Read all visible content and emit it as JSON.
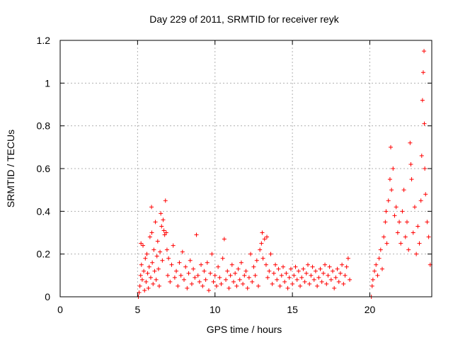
{
  "chart_data": {
    "type": "scatter",
    "title": "Day 229 of 2011, SRMTID for receiver reyk",
    "xlabel": "GPS time / hours",
    "ylabel": "SRMTID / TECUs",
    "xlim": [
      0,
      24
    ],
    "ylim": [
      0,
      1.2
    ],
    "xticks": [
      {
        "value": 0,
        "label": "0"
      },
      {
        "value": 5,
        "label": "5"
      },
      {
        "value": 10,
        "label": "10"
      },
      {
        "value": 15,
        "label": "15"
      },
      {
        "value": 20,
        "label": "20"
      }
    ],
    "yticks": [
      {
        "value": 0,
        "label": "0"
      },
      {
        "value": 0.2,
        "label": "0.2"
      },
      {
        "value": 0.4,
        "label": "0.4"
      },
      {
        "value": 0.6,
        "label": "0.6"
      },
      {
        "value": 0.8,
        "label": "0.8"
      },
      {
        "value": 1.0,
        "label": "1"
      },
      {
        "value": 1.2,
        "label": "1.2"
      }
    ],
    "grid": true,
    "marker": "plus",
    "color": "#ff0000",
    "series": [
      {
        "points": [
          [
            5.05,
            0.0
          ],
          [
            5.1,
            0.02
          ],
          [
            5.15,
            0.05
          ],
          [
            5.2,
            0.1
          ],
          [
            5.22,
            0.25
          ],
          [
            5.25,
            0.15
          ],
          [
            5.3,
            0.08
          ],
          [
            5.35,
            0.24
          ],
          [
            5.4,
            0.12
          ],
          [
            5.45,
            0.03
          ],
          [
            5.5,
            0.18
          ],
          [
            5.55,
            0.07
          ],
          [
            5.6,
            0.2
          ],
          [
            5.65,
            0.11
          ],
          [
            5.7,
            0.04
          ],
          [
            5.75,
            0.14
          ],
          [
            5.8,
            0.28
          ],
          [
            5.85,
            0.09
          ],
          [
            5.9,
            0.42
          ],
          [
            5.92,
            0.3
          ],
          [
            5.95,
            0.16
          ],
          [
            6.0,
            0.06
          ],
          [
            6.05,
            0.22
          ],
          [
            6.1,
            0.12
          ],
          [
            6.15,
            0.35
          ],
          [
            6.2,
            0.08
          ],
          [
            6.25,
            0.19
          ],
          [
            6.3,
            0.26
          ],
          [
            6.35,
            0.13
          ],
          [
            6.4,
            0.05
          ],
          [
            6.45,
            0.21
          ],
          [
            6.5,
            0.39
          ],
          [
            6.55,
            0.33
          ],
          [
            6.6,
            0.17
          ],
          [
            6.65,
            0.36
          ],
          [
            6.7,
            0.31
          ],
          [
            6.75,
            0.29
          ],
          [
            6.8,
            0.45
          ],
          [
            6.85,
            0.3
          ],
          [
            6.9,
            0.22
          ],
          [
            6.95,
            0.1
          ],
          [
            7.0,
            0.18
          ],
          [
            7.1,
            0.07
          ],
          [
            7.2,
            0.15
          ],
          [
            7.3,
            0.24
          ],
          [
            7.4,
            0.09
          ],
          [
            7.5,
            0.12
          ],
          [
            7.6,
            0.05
          ],
          [
            7.7,
            0.16
          ],
          [
            7.8,
            0.1
          ],
          [
            7.9,
            0.21
          ],
          [
            8.0,
            0.08
          ],
          [
            8.1,
            0.14
          ],
          [
            8.2,
            0.04
          ],
          [
            8.3,
            0.11
          ],
          [
            8.4,
            0.17
          ],
          [
            8.5,
            0.06
          ],
          [
            8.6,
            0.13
          ],
          [
            8.7,
            0.09
          ],
          [
            8.8,
            0.29
          ],
          [
            8.9,
            0.1
          ],
          [
            9.0,
            0.07
          ],
          [
            9.1,
            0.15
          ],
          [
            9.2,
            0.05
          ],
          [
            9.3,
            0.12
          ],
          [
            9.4,
            0.08
          ],
          [
            9.5,
            0.16
          ],
          [
            9.6,
            0.03
          ],
          [
            9.7,
            0.11
          ],
          [
            9.8,
            0.2
          ],
          [
            9.9,
            0.07
          ],
          [
            10.0,
            0.1
          ],
          [
            10.1,
            0.05
          ],
          [
            10.2,
            0.14
          ],
          [
            10.3,
            0.09
          ],
          [
            10.4,
            0.06
          ],
          [
            10.5,
            0.18
          ],
          [
            10.6,
            0.27
          ],
          [
            10.7,
            0.08
          ],
          [
            10.8,
            0.12
          ],
          [
            10.9,
            0.04
          ],
          [
            11.0,
            0.1
          ],
          [
            11.1,
            0.15
          ],
          [
            11.2,
            0.07
          ],
          [
            11.3,
            0.11
          ],
          [
            11.4,
            0.05
          ],
          [
            11.5,
            0.13
          ],
          [
            11.6,
            0.08
          ],
          [
            11.7,
            0.16
          ],
          [
            11.8,
            0.06
          ],
          [
            11.9,
            0.1
          ],
          [
            12.0,
            0.12
          ],
          [
            12.1,
            0.04
          ],
          [
            12.2,
            0.09
          ],
          [
            12.3,
            0.2
          ],
          [
            12.4,
            0.07
          ],
          [
            12.5,
            0.14
          ],
          [
            12.6,
            0.1
          ],
          [
            12.7,
            0.17
          ],
          [
            12.8,
            0.05
          ],
          [
            12.9,
            0.22
          ],
          [
            13.0,
            0.25
          ],
          [
            13.05,
            0.3
          ],
          [
            13.1,
            0.18
          ],
          [
            13.2,
            0.27
          ],
          [
            13.3,
            0.15
          ],
          [
            13.35,
            0.28
          ],
          [
            13.4,
            0.09
          ],
          [
            13.5,
            0.12
          ],
          [
            13.6,
            0.2
          ],
          [
            13.7,
            0.06
          ],
          [
            13.8,
            0.11
          ],
          [
            13.9,
            0.15
          ],
          [
            14.0,
            0.08
          ],
          [
            14.1,
            0.13
          ],
          [
            14.2,
            0.05
          ],
          [
            14.3,
            0.1
          ],
          [
            14.4,
            0.14
          ],
          [
            14.5,
            0.07
          ],
          [
            14.6,
            0.11
          ],
          [
            14.7,
            0.04
          ],
          [
            14.8,
            0.09
          ],
          [
            14.9,
            0.13
          ],
          [
            15.0,
            0.06
          ],
          [
            15.1,
            0.1
          ],
          [
            15.2,
            0.14
          ],
          [
            15.3,
            0.08
          ],
          [
            15.4,
            0.12
          ],
          [
            15.5,
            0.05
          ],
          [
            15.6,
            0.09
          ],
          [
            15.7,
            0.13
          ],
          [
            15.8,
            0.07
          ],
          [
            15.9,
            0.11
          ],
          [
            16.0,
            0.15
          ],
          [
            16.1,
            0.06
          ],
          [
            16.2,
            0.1
          ],
          [
            16.3,
            0.14
          ],
          [
            16.4,
            0.08
          ],
          [
            16.5,
            0.12
          ],
          [
            16.6,
            0.05
          ],
          [
            16.7,
            0.09
          ],
          [
            16.8,
            0.13
          ],
          [
            16.9,
            0.07
          ],
          [
            17.0,
            0.11
          ],
          [
            17.1,
            0.15
          ],
          [
            17.2,
            0.06
          ],
          [
            17.3,
            0.1
          ],
          [
            17.4,
            0.14
          ],
          [
            17.5,
            0.08
          ],
          [
            17.6,
            0.12
          ],
          [
            17.7,
            0.04
          ],
          [
            17.8,
            0.09
          ],
          [
            17.9,
            0.13
          ],
          [
            18.0,
            0.07
          ],
          [
            18.1,
            0.11
          ],
          [
            18.2,
            0.15
          ],
          [
            18.3,
            0.06
          ],
          [
            18.4,
            0.1
          ],
          [
            18.5,
            0.14
          ],
          [
            18.6,
            0.18
          ],
          [
            18.7,
            0.08
          ],
          [
            20.1,
            0.0
          ],
          [
            20.15,
            0.05
          ],
          [
            20.2,
            0.08
          ],
          [
            20.3,
            0.12
          ],
          [
            20.4,
            0.15
          ],
          [
            20.5,
            0.1
          ],
          [
            20.6,
            0.18
          ],
          [
            20.7,
            0.22
          ],
          [
            20.8,
            0.13
          ],
          [
            20.9,
            0.28
          ],
          [
            21.0,
            0.35
          ],
          [
            21.05,
            0.4
          ],
          [
            21.1,
            0.25
          ],
          [
            21.2,
            0.45
          ],
          [
            21.3,
            0.55
          ],
          [
            21.35,
            0.7
          ],
          [
            21.4,
            0.5
          ],
          [
            21.5,
            0.6
          ],
          [
            21.6,
            0.38
          ],
          [
            21.7,
            0.42
          ],
          [
            21.8,
            0.3
          ],
          [
            21.9,
            0.35
          ],
          [
            22.0,
            0.25
          ],
          [
            22.1,
            0.4
          ],
          [
            22.2,
            0.5
          ],
          [
            22.3,
            0.28
          ],
          [
            22.4,
            0.35
          ],
          [
            22.5,
            0.22
          ],
          [
            22.6,
            0.72
          ],
          [
            22.65,
            0.62
          ],
          [
            22.7,
            0.55
          ],
          [
            22.8,
            0.3
          ],
          [
            22.9,
            0.42
          ],
          [
            23.0,
            0.2
          ],
          [
            23.1,
            0.33
          ],
          [
            23.2,
            0.25
          ],
          [
            23.3,
            0.45
          ],
          [
            23.35,
            0.66
          ],
          [
            23.4,
            0.92
          ],
          [
            23.45,
            1.05
          ],
          [
            23.5,
            1.15
          ],
          [
            23.52,
            0.81
          ],
          [
            23.55,
            0.6
          ],
          [
            23.6,
            0.48
          ],
          [
            23.7,
            0.35
          ],
          [
            23.8,
            0.28
          ],
          [
            23.9,
            0.15
          ]
        ]
      }
    ]
  }
}
